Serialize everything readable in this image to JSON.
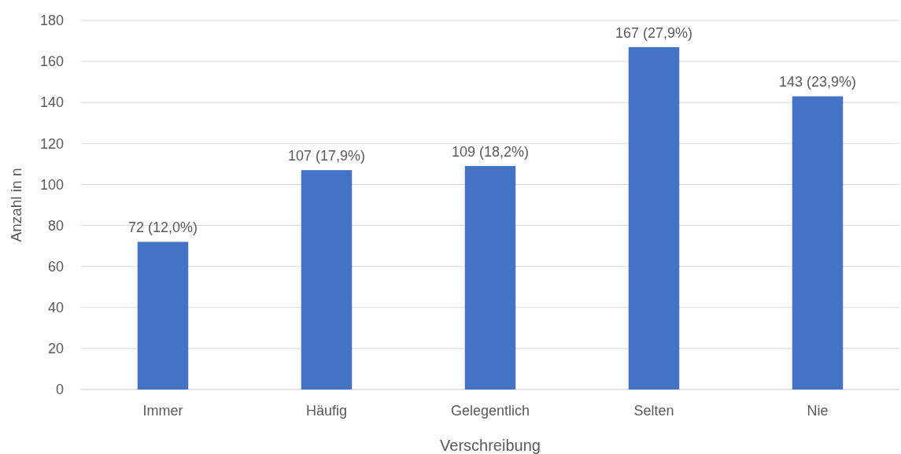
{
  "chart_data": {
    "type": "bar",
    "xlabel": "Verschreibung",
    "ylabel": "Anzahl in n",
    "categories": [
      "Immer",
      "Häufig",
      "Gelegentlich",
      "Selten",
      "Nie"
    ],
    "values": [
      72,
      107,
      109,
      167,
      143
    ],
    "color": "#4472c4",
    "value_labels": [
      "72 (12,0%)",
      "107 (17,9%)",
      "109 (18,2%)",
      "167 (27,9%)",
      "143 (23,9%)"
    ],
    "ylim": [
      0,
      180
    ],
    "yticks": [
      0,
      20,
      40,
      60,
      80,
      100,
      120,
      140,
      160,
      180
    ],
    "grid": "y"
  }
}
